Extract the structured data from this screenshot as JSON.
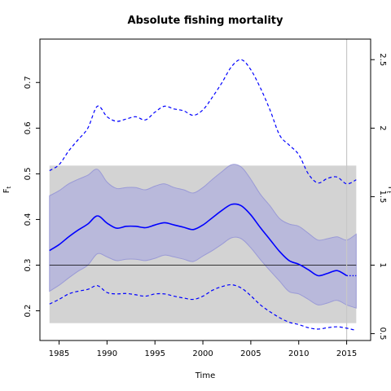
{
  "chart_data": {
    "type": "line",
    "title": "Absolute fishing mortality",
    "xlabel": "Time",
    "ylabel": "F",
    "ylabel_sub": "t",
    "y2label": "F",
    "y2label_sub": "t",
    "xlim": [
      1983,
      2017.5
    ],
    "ylim": [
      0.135,
      0.795
    ],
    "y2lim": [
      0.45,
      2.65
    ],
    "x_ticks": [
      1985,
      1990,
      1995,
      2000,
      2005,
      2010,
      2015
    ],
    "y_ticks": [
      0.2,
      0.3,
      0.4,
      0.5,
      0.6,
      0.7
    ],
    "y2_ticks": [
      0.5,
      1,
      1.5,
      2,
      2.5
    ],
    "y2_tick_labels": [
      "0.5",
      "1",
      "1.5",
      "2",
      "2.5"
    ],
    "grid": false,
    "reference_band": {
      "x": [
        1984,
        2016
      ],
      "y": [
        0.173,
        0.518
      ],
      "color": "#d3d3d3"
    },
    "reference_line_y": 0.3,
    "last_obs_year": 2015,
    "colors": {
      "estimate": "#0000ff",
      "ci_fill": "#b4b4dc",
      "ci_edge": "#9a9ad6",
      "band": "#d3d3d3",
      "ref_line": "#000000",
      "vline": "#c8c8c8"
    },
    "x": [
      1984,
      1985,
      1986,
      1987,
      1988,
      1989,
      1990,
      1991,
      1992,
      1993,
      1994,
      1995,
      1996,
      1997,
      1998,
      1999,
      2000,
      2001,
      2002,
      2003,
      2004,
      2005,
      2006,
      2007,
      2008,
      2009,
      2010,
      2011,
      2012,
      2013,
      2014,
      2015
    ],
    "series": [
      {
        "role": "estimate",
        "values": [
          0.332,
          0.345,
          0.362,
          0.377,
          0.39,
          0.408,
          0.392,
          0.381,
          0.385,
          0.385,
          0.382,
          0.388,
          0.393,
          0.388,
          0.383,
          0.378,
          0.388,
          0.404,
          0.42,
          0.433,
          0.43,
          0.41,
          0.382,
          0.356,
          0.33,
          0.31,
          0.302,
          0.29,
          0.277,
          0.282,
          0.288,
          0.277
        ]
      },
      {
        "role": "ci_upper",
        "values": [
          0.452,
          0.463,
          0.478,
          0.488,
          0.497,
          0.51,
          0.482,
          0.468,
          0.47,
          0.47,
          0.465,
          0.473,
          0.478,
          0.47,
          0.465,
          0.458,
          0.47,
          0.488,
          0.505,
          0.52,
          0.515,
          0.488,
          0.455,
          0.43,
          0.402,
          0.39,
          0.385,
          0.37,
          0.355,
          0.358,
          0.362,
          0.355
        ]
      },
      {
        "role": "ci_lower",
        "values": [
          0.243,
          0.256,
          0.272,
          0.287,
          0.3,
          0.325,
          0.318,
          0.31,
          0.313,
          0.313,
          0.31,
          0.315,
          0.322,
          0.318,
          0.313,
          0.308,
          0.32,
          0.332,
          0.346,
          0.36,
          0.358,
          0.338,
          0.312,
          0.288,
          0.265,
          0.242,
          0.237,
          0.225,
          0.213,
          0.217,
          0.223,
          0.213
        ]
      },
      {
        "role": "upper_dashed",
        "values": [
          0.507,
          0.52,
          0.55,
          0.575,
          0.6,
          0.648,
          0.625,
          0.615,
          0.62,
          0.625,
          0.618,
          0.635,
          0.648,
          0.642,
          0.638,
          0.628,
          0.64,
          0.668,
          0.7,
          0.735,
          0.75,
          0.728,
          0.688,
          0.64,
          0.585,
          0.563,
          0.542,
          0.5,
          0.48,
          0.49,
          0.493,
          0.478
        ]
      },
      {
        "role": "lower_dashed",
        "values": [
          0.215,
          0.225,
          0.237,
          0.243,
          0.247,
          0.255,
          0.24,
          0.237,
          0.238,
          0.235,
          0.232,
          0.237,
          0.237,
          0.232,
          0.228,
          0.225,
          0.232,
          0.245,
          0.253,
          0.257,
          0.25,
          0.233,
          0.213,
          0.198,
          0.185,
          0.175,
          0.17,
          0.163,
          0.16,
          0.163,
          0.165,
          0.162
        ]
      }
    ],
    "projection_x": [
      2015,
      2016
    ],
    "projection": {
      "estimate": [
        0.277,
        0.277
      ],
      "ci_upper": [
        0.355,
        0.368
      ],
      "ci_lower": [
        0.213,
        0.206
      ],
      "upper_dashed": [
        0.478,
        0.487
      ],
      "lower_dashed": [
        0.162,
        0.157
      ]
    }
  }
}
